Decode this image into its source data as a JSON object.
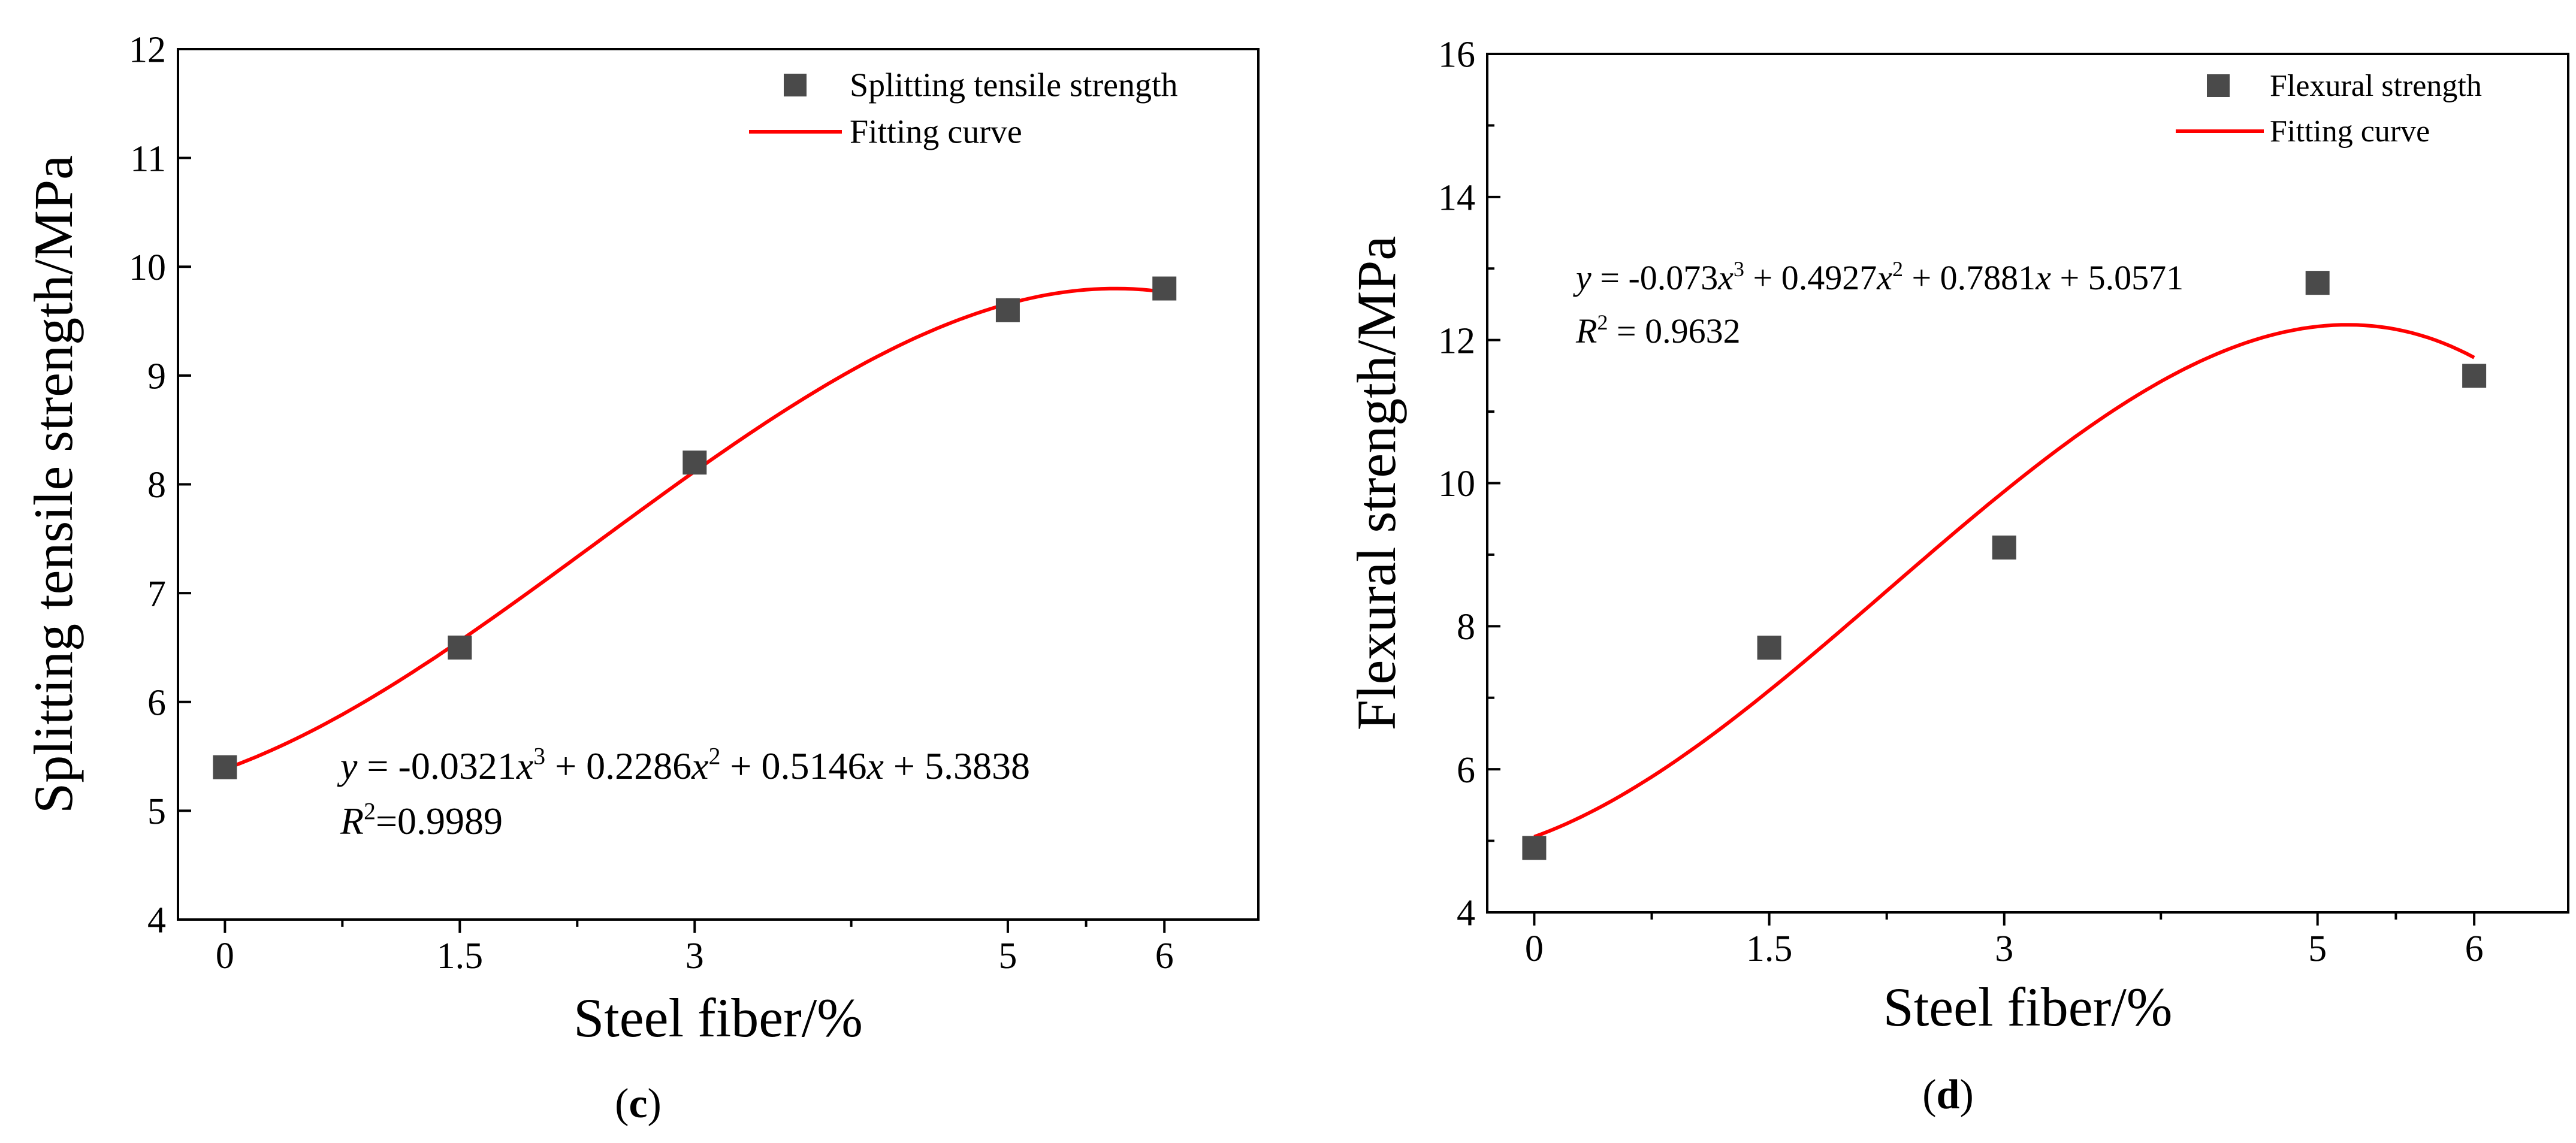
{
  "chart_data": [
    {
      "type": "scatter",
      "panel_label": "c",
      "title": "",
      "xlabel": "Steel fiber/%",
      "ylabel": "Splitting tensile strength/MPa",
      "xlim": [
        -0.3,
        6.6
      ],
      "ylim": [
        4,
        12
      ],
      "x_ticks": [
        0,
        1.5,
        3,
        5,
        6
      ],
      "x_tick_labels": [
        "0",
        "1.5",
        "3",
        "5",
        "6"
      ],
      "x_minor_ticks": [
        0.75,
        2.25,
        4,
        5.5
      ],
      "y_ticks": [
        4,
        5,
        6,
        7,
        8,
        9,
        10,
        11,
        12
      ],
      "y_tick_labels": [
        "4",
        "5",
        "6",
        "7",
        "8",
        "9",
        "10",
        "11",
        "12"
      ],
      "legend_position": "top-right",
      "series": [
        {
          "name": "Splitting tensile strength",
          "kind": "points",
          "x": [
            0,
            1.5,
            3,
            5,
            6
          ],
          "y": [
            5.4,
            6.5,
            8.2,
            9.6,
            9.8
          ]
        },
        {
          "name": "Fitting curve",
          "kind": "line",
          "coefficients": [
            -0.0321,
            0.2286,
            0.5146,
            5.3838
          ],
          "x_range": [
            0,
            6
          ]
        }
      ],
      "equation": {
        "y_var": "y",
        "eq_text": " = -0.0321",
        "x1": "x",
        "sup1": "3",
        "t2": " + 0.2286",
        "x2": "x",
        "sup2": "2",
        "t3": " + 0.5146",
        "x3": "x",
        "t4": " + 5.3838",
        "r_var": "R",
        "r_sup": "2",
        "r_val": "=0.9989"
      }
    },
    {
      "type": "scatter",
      "panel_label": "d",
      "title": "",
      "xlabel": "Steel fiber/%",
      "ylabel": "Flexural strength/MPa",
      "xlim": [
        -0.3,
        6.6
      ],
      "ylim": [
        4,
        16
      ],
      "x_ticks": [
        0,
        1.5,
        3,
        5,
        6
      ],
      "x_tick_labels": [
        "0",
        "1.5",
        "3",
        "5",
        "6"
      ],
      "x_minor_ticks": [
        0.75,
        2.25,
        4,
        5.5
      ],
      "y_ticks": [
        4,
        6,
        8,
        10,
        12,
        14,
        16
      ],
      "y_tick_labels": [
        "4",
        "6",
        "8",
        "10",
        "12",
        "14",
        "16"
      ],
      "y_minor_ticks": [
        5,
        7,
        9,
        11,
        13,
        15
      ],
      "legend_position": "top-right",
      "series": [
        {
          "name": "Flexural strength",
          "kind": "points",
          "x": [
            0,
            1.5,
            3,
            5,
            6
          ],
          "y": [
            4.9,
            7.7,
            9.1,
            12.8,
            11.5
          ]
        },
        {
          "name": "Fitting curve",
          "kind": "line",
          "coefficients": [
            -0.073,
            0.4927,
            0.7881,
            5.0571
          ],
          "x_range": [
            0,
            6
          ]
        }
      ],
      "equation": {
        "y_var": "y",
        "eq_text": " = -0.073",
        "x1": "x",
        "sup1": "3",
        "t2": " + 0.4927",
        "x2": "x",
        "sup2": "2",
        "t3": " + 0.7881",
        "x3": "x",
        "t4": " + 5.0571",
        "r_var": "R",
        "r_sup": "2",
        "r_val": " = 0.9632"
      }
    }
  ],
  "colors": {
    "fit_line": "#ff0000",
    "marker": "#4a4a4a",
    "axis": "#000000"
  }
}
